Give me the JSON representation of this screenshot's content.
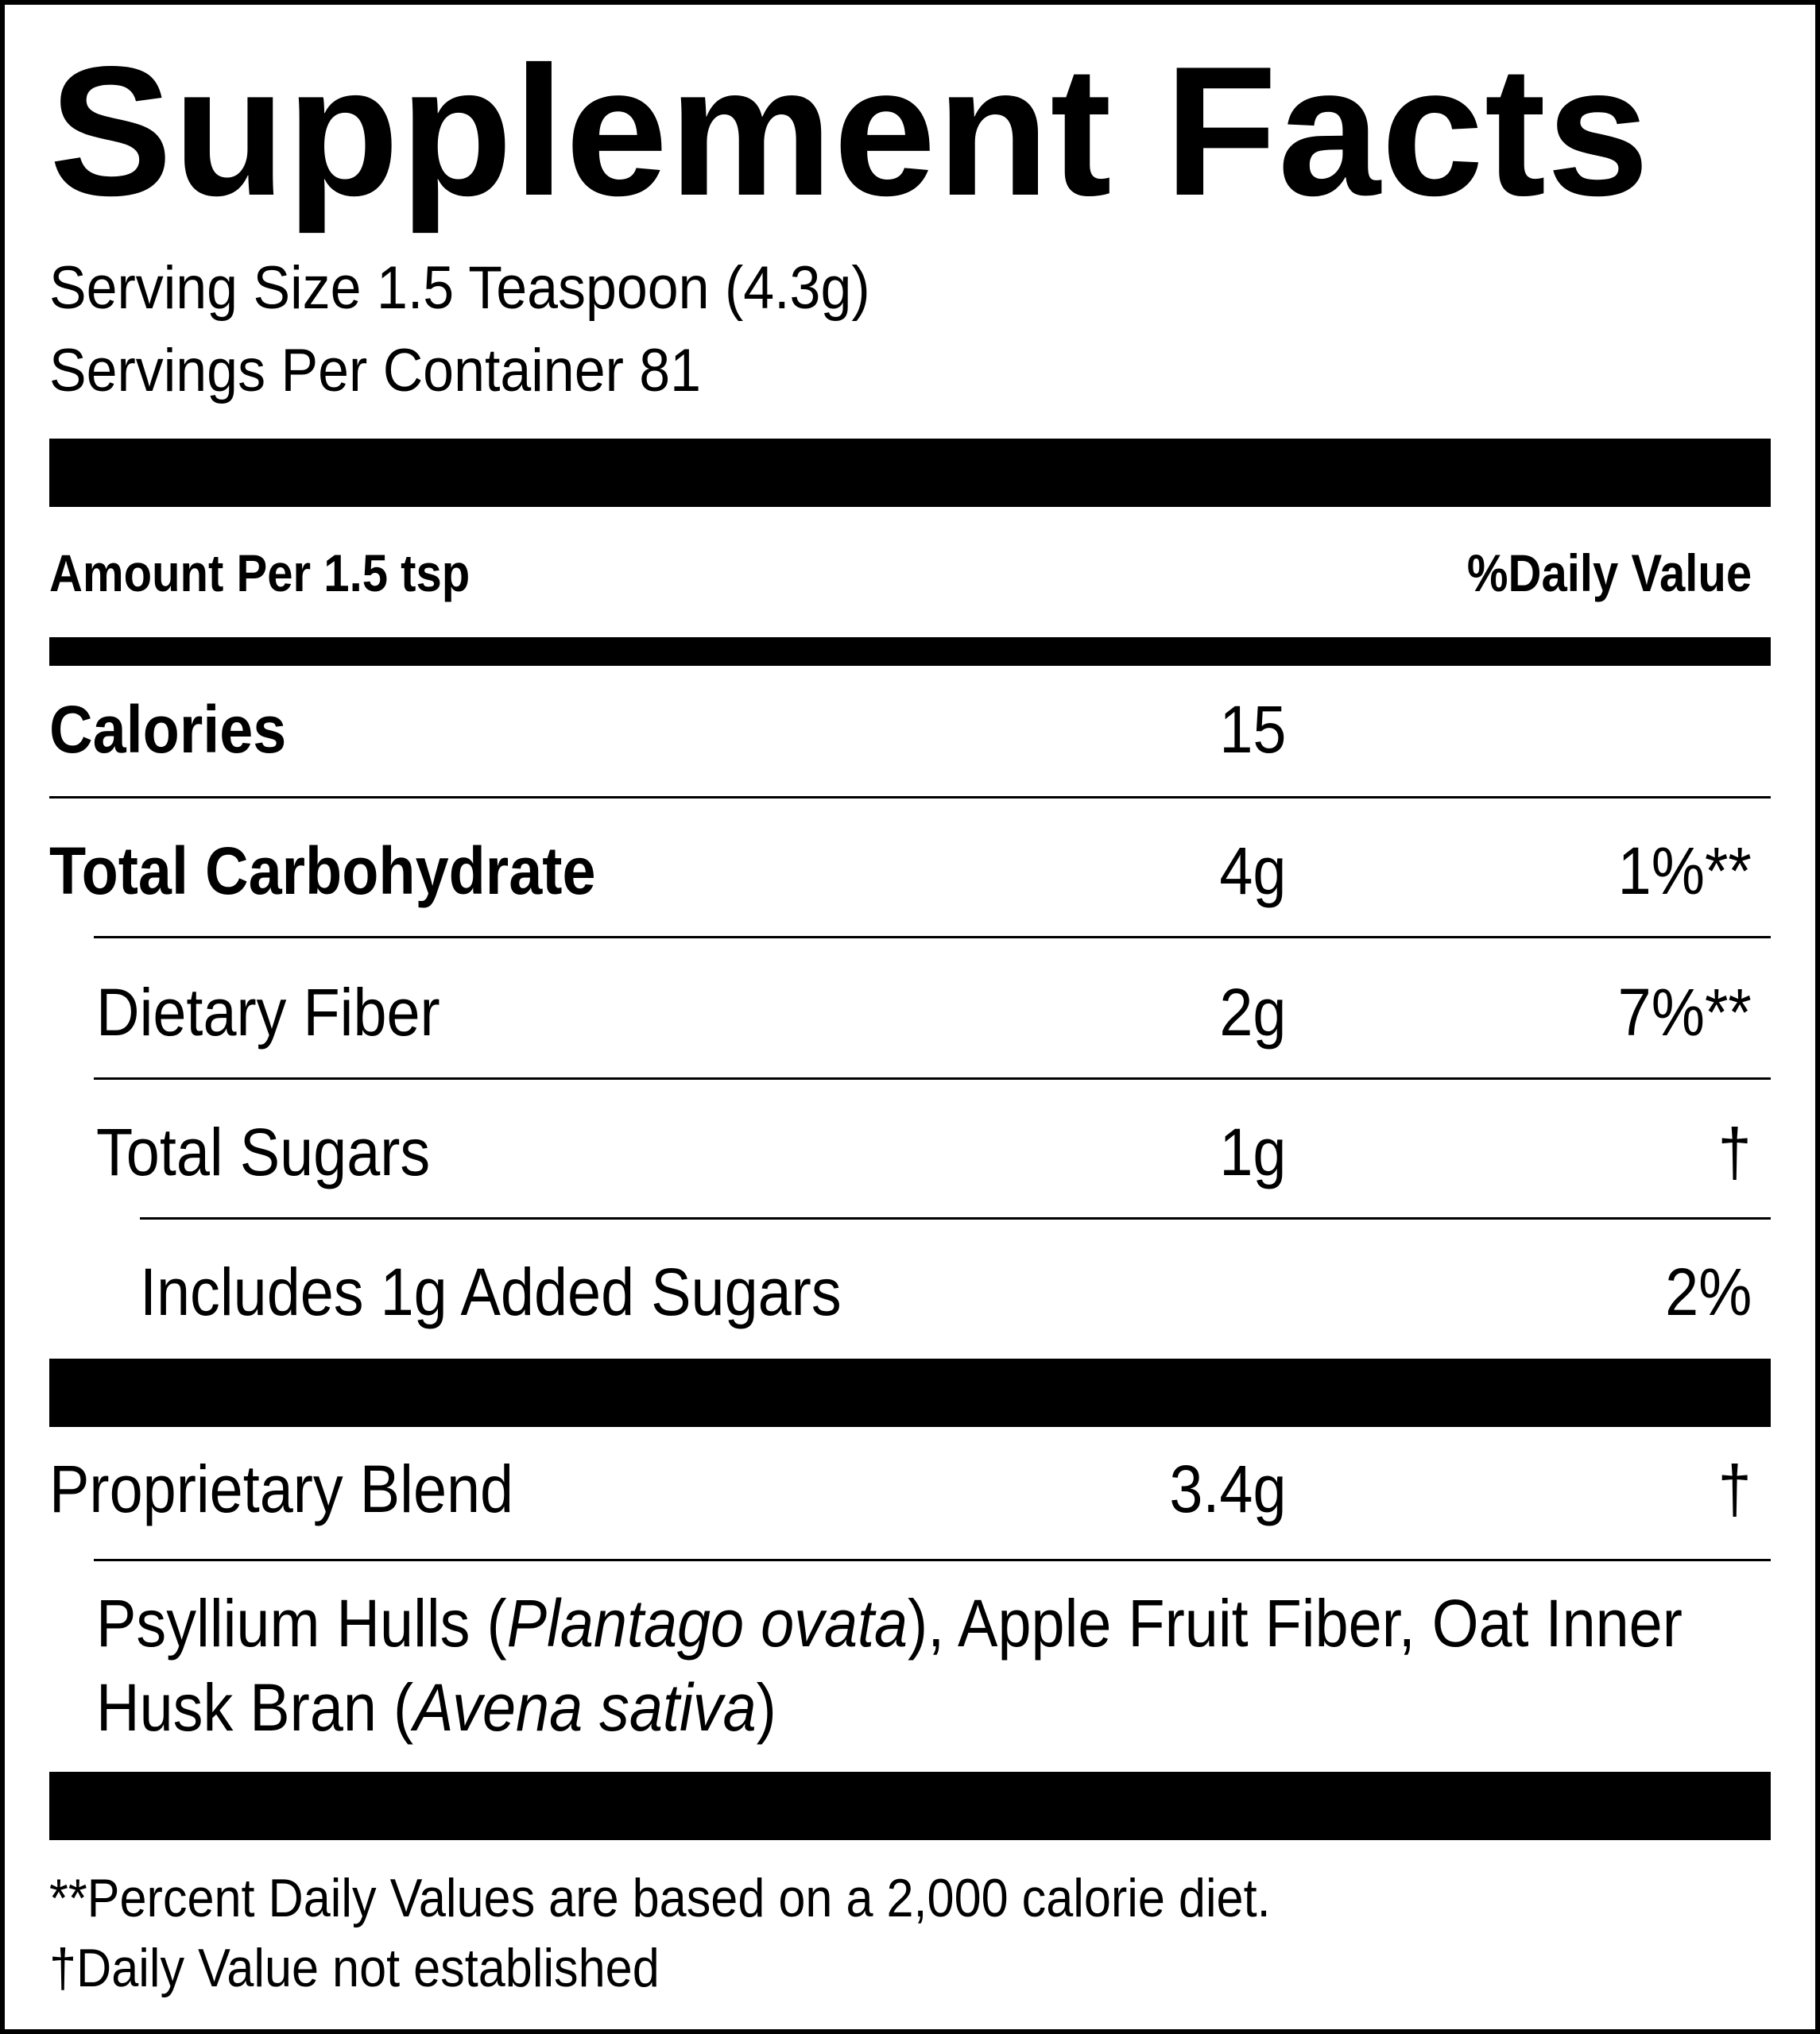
{
  "title": "Supplement Facts",
  "serving_size": "Serving Size 1.5 Teaspoon (4.3g)",
  "servings_per_container": "Servings Per Container 81",
  "header": {
    "amount_per": "Amount Per 1.5 tsp",
    "daily_value": "%Daily Value"
  },
  "rows": [
    {
      "name": "Calories",
      "amount": "15",
      "dv": ""
    },
    {
      "name": "Total Carbohydrate",
      "amount": "4g",
      "dv": "1%**"
    },
    {
      "name": "Dietary Fiber",
      "amount": "2g",
      "dv": "7%**"
    },
    {
      "name": "Total Sugars",
      "amount": "1g",
      "dv": "†"
    },
    {
      "name": "Includes 1g Added Sugars",
      "amount": "",
      "dv": "2%"
    }
  ],
  "blend": {
    "name": "Proprietary Blend",
    "amount": "3.4g",
    "dv": "†",
    "ingredients_1": "Psyllium Hulls (",
    "ingredients_1_italic": "Plantago ovata",
    "ingredients_2": "), Apple Fruit Fiber, Oat Inner Husk Bran (",
    "ingredients_2_italic": "Avena sativa",
    "ingredients_3": ")"
  },
  "footnotes": [
    "**Percent Daily Values are based on a 2,000 calorie diet.",
    "†Daily Value not established"
  ]
}
